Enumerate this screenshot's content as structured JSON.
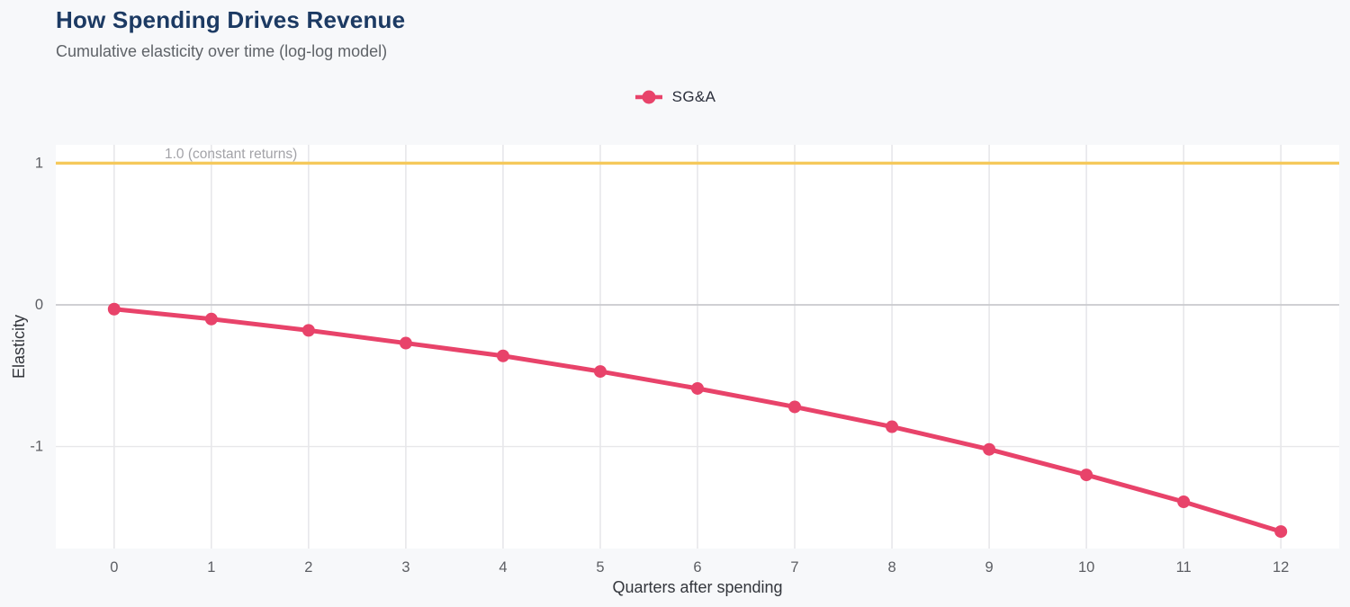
{
  "page": {
    "background": "#f7f8fa",
    "plot_background": "#ffffff"
  },
  "header": {
    "title": "How Spending Drives Revenue",
    "subtitle": "Cumulative elasticity over time (log-log model)",
    "title_color": "#1c3a63",
    "subtitle_color": "#5f6368"
  },
  "chart_data": {
    "type": "line",
    "title": "How Spending Drives Revenue",
    "subtitle": "Cumulative elasticity over time (log-log model)",
    "xlabel": "Quarters after spending",
    "ylabel": "Elasticity",
    "x": [
      0,
      1,
      2,
      3,
      4,
      5,
      6,
      7,
      8,
      9,
      10,
      11,
      12
    ],
    "series": [
      {
        "name": "SG&A",
        "color": "#e8436a",
        "values": [
          -0.03,
          -0.1,
          -0.18,
          -0.27,
          -0.36,
          -0.47,
          -0.59,
          -0.72,
          -0.86,
          -1.02,
          -1.2,
          -1.39,
          -1.6
        ]
      }
    ],
    "x_ticks": [
      0,
      1,
      2,
      3,
      4,
      5,
      6,
      7,
      8,
      9,
      10,
      11,
      12
    ],
    "y_ticks": [
      -1,
      0,
      1
    ],
    "xlim": [
      -0.6,
      12.6
    ],
    "ylim": [
      -1.72,
      1.13
    ],
    "grid": true,
    "grid_color": "#e7e7ea",
    "zero_line_color": "#c9cacd",
    "legend_position": "top-center",
    "reference_line": {
      "y": 1.0,
      "label": "1.0 (constant returns)",
      "color": "#f5c95c",
      "label_color": "#a3a3a8"
    },
    "tick_label_color": "#5c5e63",
    "axis_title_color": "#33363c"
  }
}
